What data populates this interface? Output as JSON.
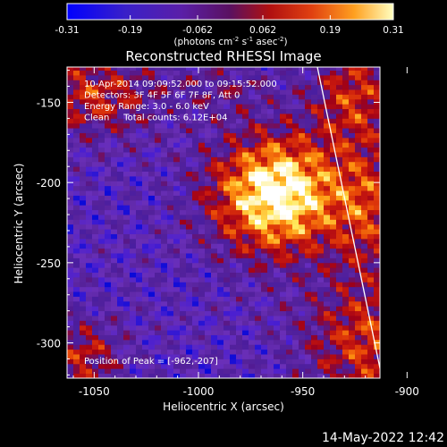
{
  "colorbar": {
    "ticks": [
      "-0.31",
      "-0.19",
      "-0.062",
      "0.062",
      "0.19",
      "0.31"
    ],
    "unit_label": "(photons cm",
    "unit_sup1": "-2",
    "unit_mid": " s",
    "unit_sup2": "-1",
    "unit_end": " asec",
    "unit_sup3": "-2",
    "unit_close": ")"
  },
  "chart_data": {
    "type": "heatmap",
    "title": "Reconstructed RHESSI Image",
    "xlabel": "Heliocentric X (arcsec)",
    "ylabel": "Heliocentric Y (arcsec)",
    "xlim": [
      -1063,
      -913
    ],
    "ylim": [
      -322,
      -128
    ],
    "x_ticks": [
      "-1050",
      "-1000",
      "-950",
      "-900"
    ],
    "y_ticks": [
      "-150",
      "-200",
      "-250",
      "-300"
    ],
    "x_tick_values": [
      -1050,
      -1000,
      -950,
      -900
    ],
    "y_tick_values": [
      -150,
      -200,
      -250,
      -300
    ],
    "value_range": [
      -0.31,
      0.31
    ],
    "peak": {
      "x": -962,
      "y": -207,
      "value": 0.31
    },
    "annotations": [
      "10-Apr-2014 09:09:52.000 to 09:15:52.000",
      "Detectors: 3F 4F 5F 6F 7F 8F, Att 0",
      "Energy Range: 3.0 - 6.0 keV",
      "Clean     Total counts: 6.12E+04"
    ],
    "peak_label": "Position of Peak = [-962,-207]",
    "limb_line": [
      [
        -943,
        -128
      ],
      [
        -912,
        -322
      ]
    ],
    "colormap": [
      "#0a0ad8",
      "#4b1fd0",
      "#6a2fb8",
      "#56229a",
      "#4a1ea0",
      "#9e0018",
      "#c8180e",
      "#e84808",
      "#ff9a12",
      "#ffe85a",
      "#ffffff"
    ]
  },
  "timestamp": "14-May-2022 12:42"
}
